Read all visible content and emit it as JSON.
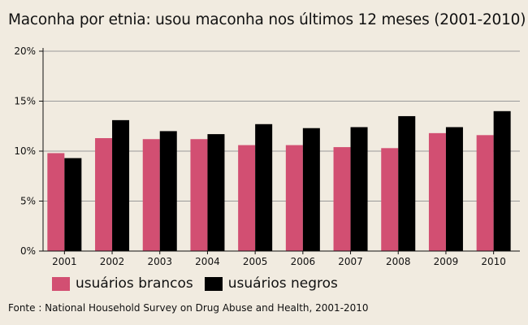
{
  "chart_data": {
    "type": "bar",
    "title": "Maconha por etnia: usou maconha nos últimos 12 meses (2001-2010)",
    "categories": [
      "2001",
      "2002",
      "2003",
      "2004",
      "2005",
      "2006",
      "2007",
      "2008",
      "2009",
      "2010"
    ],
    "series": [
      {
        "name": "usuários brancos",
        "color": "#d24f72",
        "values": [
          9.8,
          11.3,
          11.2,
          11.2,
          10.6,
          10.6,
          10.4,
          10.3,
          11.8,
          11.6
        ]
      },
      {
        "name": "usuários negros",
        "color": "#000000",
        "values": [
          9.3,
          13.1,
          12.0,
          11.7,
          12.7,
          12.3,
          12.4,
          13.5,
          12.4,
          14.0
        ]
      }
    ],
    "ylim": [
      0,
      20
    ],
    "yticks": [
      0,
      5,
      10,
      15,
      20
    ],
    "ytick_labels": [
      "0%",
      "5%",
      "10%",
      "15%",
      "20%"
    ],
    "xlabel": "",
    "ylabel": "",
    "grid": true,
    "legend_position": "bottom-left",
    "source": "Fonte : National Household Survey on Drug Abuse and Health, 2001-2010"
  }
}
